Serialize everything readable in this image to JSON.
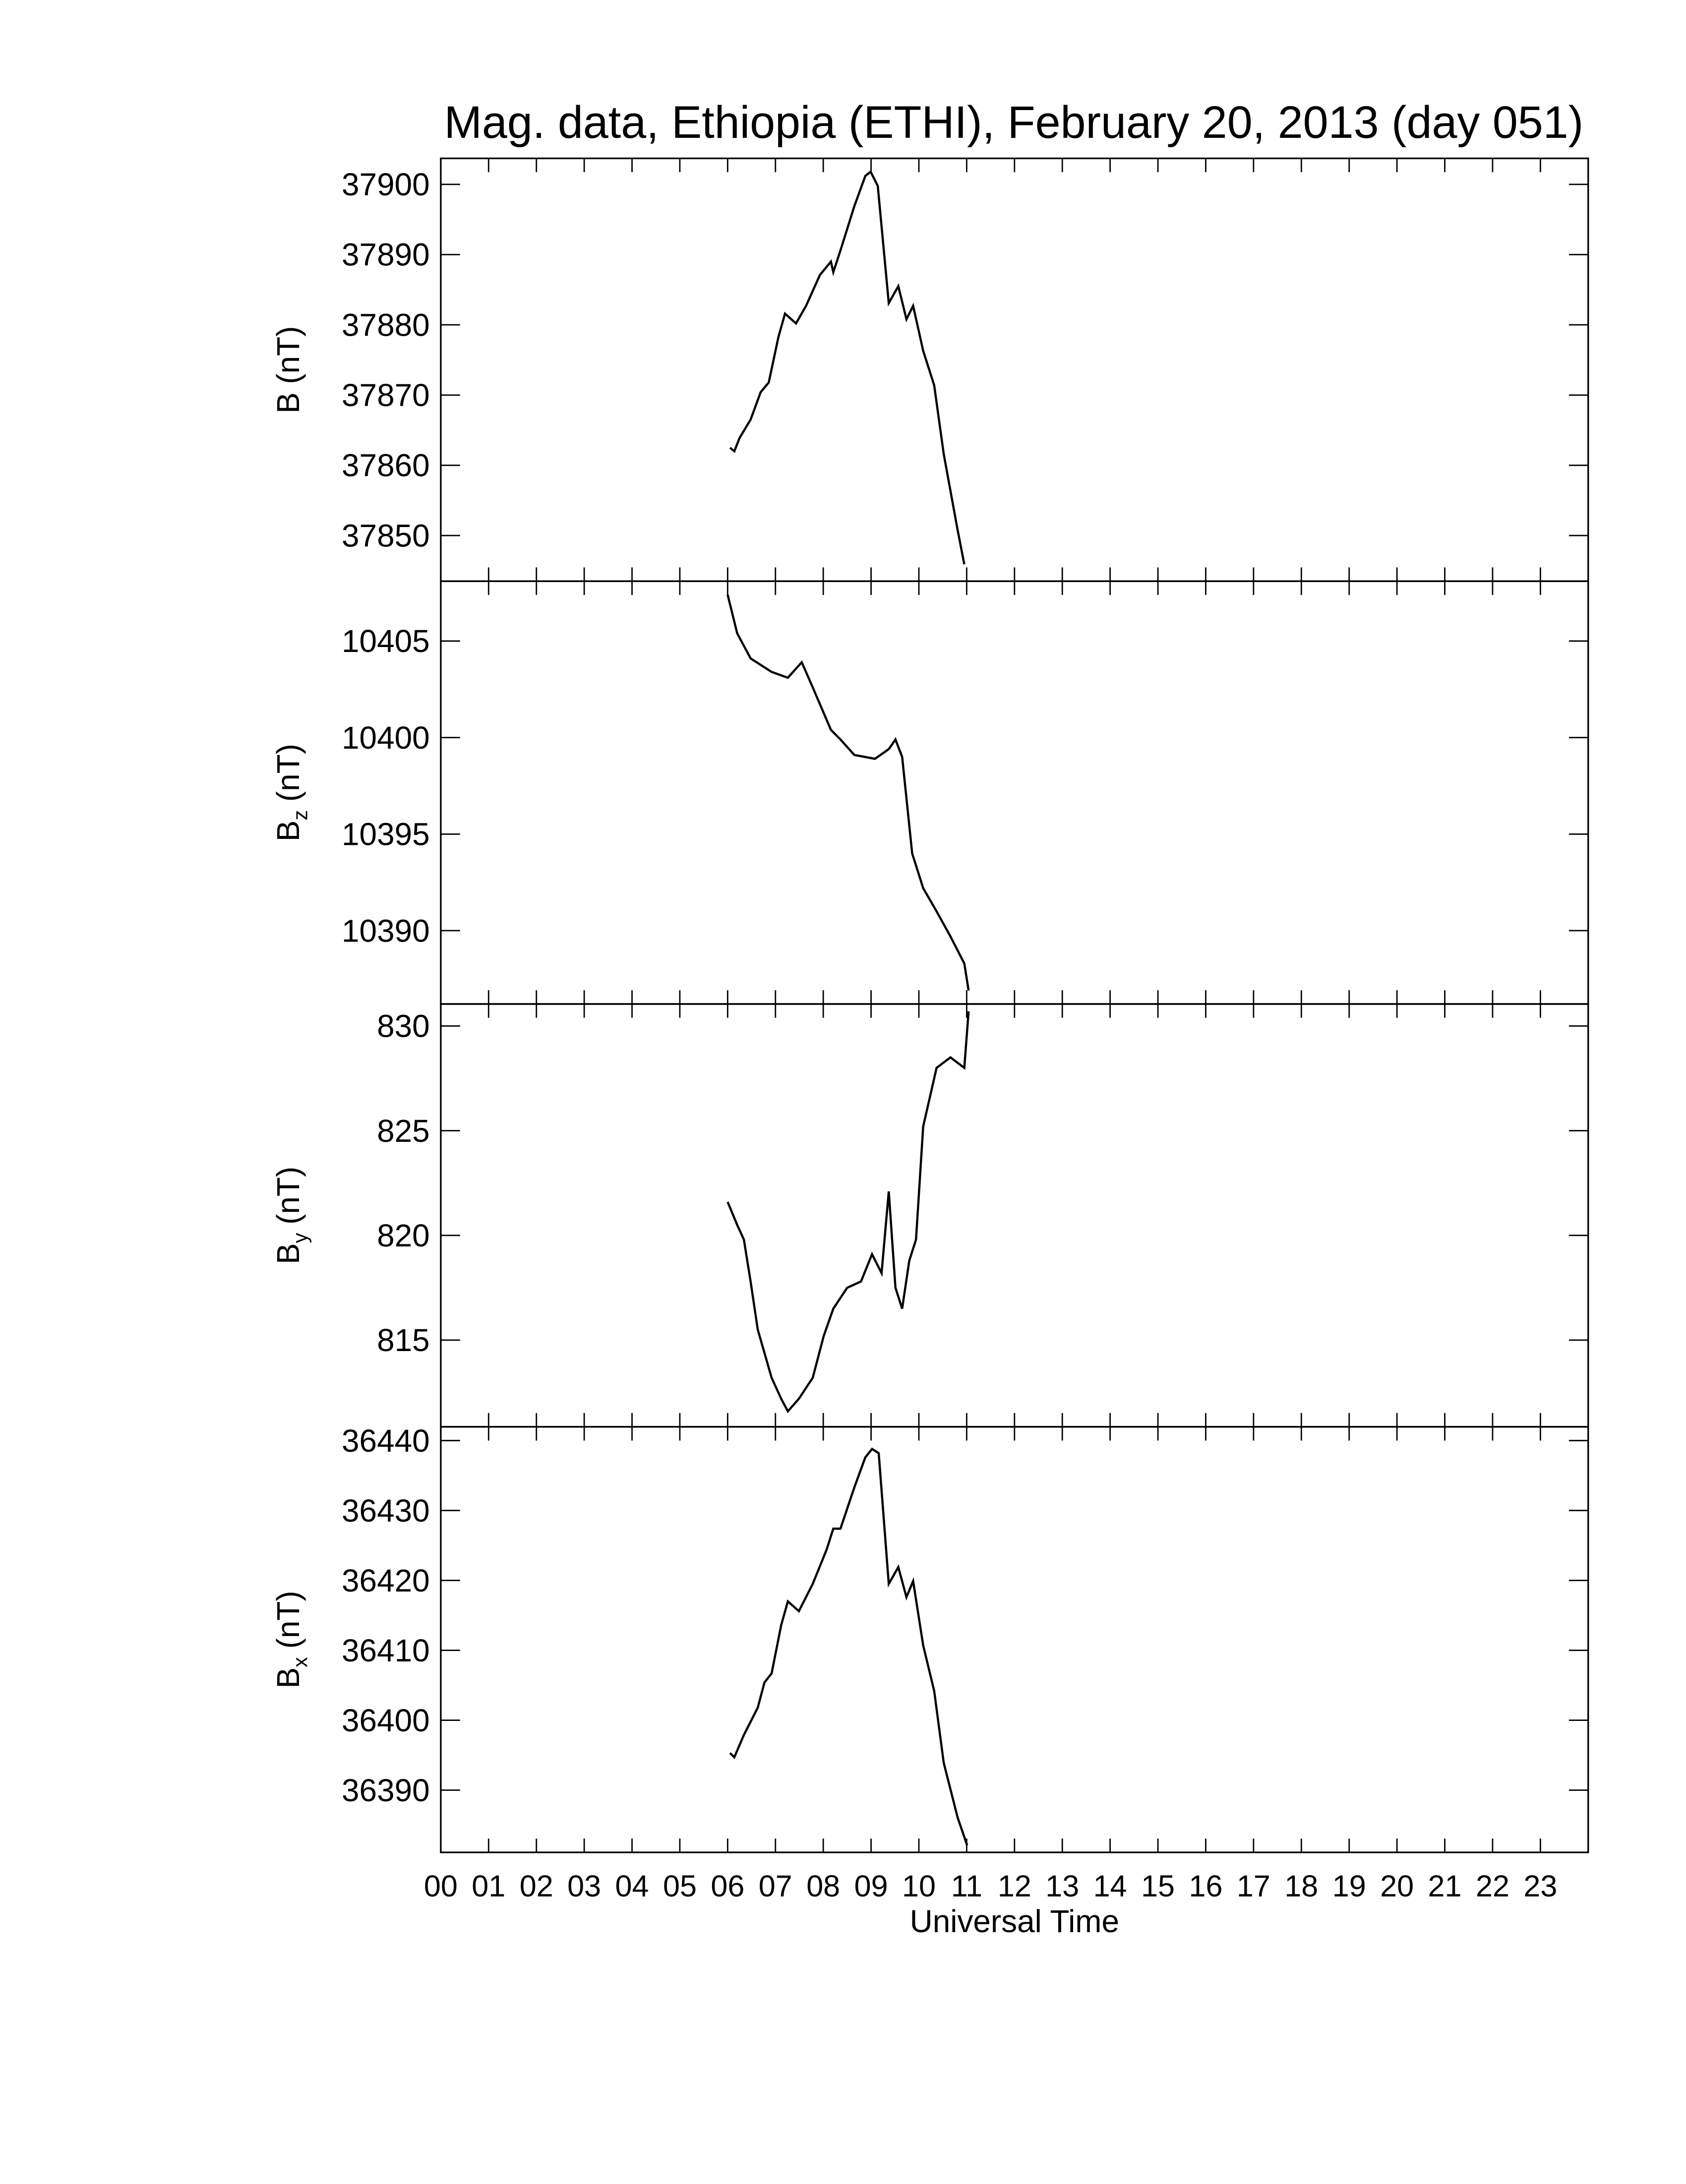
{
  "chart_data": [
    {
      "type": "line",
      "title": "Mag. data, Ethiopia (ETHI), February 20, 2013 (day 051)",
      "ylabel": "B",
      "ylabel_unit": "(nT)",
      "color": "#000000",
      "xlim": [
        0,
        24
      ],
      "xticks": [
        {
          "value": 0,
          "label": "00"
        },
        {
          "value": 1,
          "label": "01"
        },
        {
          "value": 2,
          "label": "02"
        },
        {
          "value": 3,
          "label": "03"
        },
        {
          "value": 4,
          "label": "04"
        },
        {
          "value": 5,
          "label": "05"
        },
        {
          "value": 6,
          "label": "06"
        },
        {
          "value": 7,
          "label": "07"
        },
        {
          "value": 8,
          "label": "08"
        },
        {
          "value": 9,
          "label": "09"
        },
        {
          "value": 10,
          "label": "10"
        },
        {
          "value": 11,
          "label": "11"
        },
        {
          "value": 12,
          "label": "12"
        },
        {
          "value": 13,
          "label": "13"
        },
        {
          "value": 14,
          "label": "14"
        },
        {
          "value": 15,
          "label": "15"
        },
        {
          "value": 16,
          "label": "16"
        },
        {
          "value": 17,
          "label": "17"
        },
        {
          "value": 18,
          "label": "18"
        },
        {
          "value": 19,
          "label": "19"
        },
        {
          "value": 20,
          "label": "20"
        },
        {
          "value": 21,
          "label": "21"
        },
        {
          "value": 22,
          "label": "22"
        },
        {
          "value": 23,
          "label": "23"
        }
      ],
      "ylim": [
        37843.5,
        37903.7
      ],
      "yticks": [
        37850,
        37860,
        37870,
        37880,
        37890,
        37900
      ],
      "x": [
        6.05,
        6.14,
        6.25,
        6.48,
        6.69,
        6.86,
        7.06,
        7.2,
        7.43,
        7.64,
        7.93,
        8.16,
        8.21,
        8.36,
        8.65,
        8.88,
        8.99,
        9.14,
        9.37,
        9.57,
        9.74,
        9.88,
        10.09,
        10.32,
        10.52,
        10.81,
        10.95
      ],
      "values": [
        37862.5,
        37862.0,
        37863.9,
        37866.5,
        37870.4,
        37871.8,
        37878.2,
        37881.6,
        37880.2,
        37882.7,
        37887.1,
        37889.0,
        37887.5,
        37890.6,
        37896.9,
        37901.2,
        37901.8,
        37899.8,
        37883.1,
        37885.5,
        37880.8,
        37882.7,
        37876.3,
        37871.4,
        37861.6,
        37850.8,
        37845.9
      ]
    },
    {
      "type": "line",
      "ylabel": "B",
      "ylabel_sub": "z",
      "ylabel_unit": "(nT)",
      "color": "#000000",
      "xlim": [
        0,
        24
      ],
      "xticks": [
        {
          "value": 0,
          "label": "00"
        },
        {
          "value": 1,
          "label": "01"
        },
        {
          "value": 2,
          "label": "02"
        },
        {
          "value": 3,
          "label": "03"
        },
        {
          "value": 4,
          "label": "04"
        },
        {
          "value": 5,
          "label": "05"
        },
        {
          "value": 6,
          "label": "06"
        },
        {
          "value": 7,
          "label": "07"
        },
        {
          "value": 8,
          "label": "08"
        },
        {
          "value": 9,
          "label": "09"
        },
        {
          "value": 10,
          "label": "10"
        },
        {
          "value": 11,
          "label": "11"
        },
        {
          "value": 12,
          "label": "12"
        },
        {
          "value": 13,
          "label": "13"
        },
        {
          "value": 14,
          "label": "14"
        },
        {
          "value": 15,
          "label": "15"
        },
        {
          "value": 16,
          "label": "16"
        },
        {
          "value": 17,
          "label": "17"
        },
        {
          "value": 18,
          "label": "18"
        },
        {
          "value": 19,
          "label": "19"
        },
        {
          "value": 20,
          "label": "20"
        },
        {
          "value": 21,
          "label": "21"
        },
        {
          "value": 22,
          "label": "22"
        },
        {
          "value": 23,
          "label": "23"
        }
      ],
      "ylim": [
        10386.2,
        10408.1
      ],
      "yticks": [
        10390,
        10395,
        10400,
        10405
      ],
      "x": [
        6.0,
        6.2,
        6.48,
        6.92,
        7.26,
        7.55,
        7.78,
        8.16,
        8.36,
        8.65,
        9.08,
        9.37,
        9.51,
        9.65,
        9.86,
        10.09,
        10.37,
        10.66,
        10.95,
        11.04
      ],
      "values": [
        10407.4,
        10405.4,
        10404.1,
        10403.4,
        10403.1,
        10403.9,
        10402.6,
        10400.4,
        10399.9,
        10399.1,
        10398.9,
        10399.4,
        10399.9,
        10399.0,
        10394.0,
        10392.2,
        10391.0,
        10389.7,
        10388.3,
        10386.9
      ]
    },
    {
      "type": "line",
      "ylabel": "B",
      "ylabel_sub": "y",
      "ylabel_unit": "(nT)",
      "color": "#000000",
      "xlim": [
        0,
        24
      ],
      "xticks": [
        {
          "value": 0,
          "label": "00"
        },
        {
          "value": 1,
          "label": "01"
        },
        {
          "value": 2,
          "label": "02"
        },
        {
          "value": 3,
          "label": "03"
        },
        {
          "value": 4,
          "label": "04"
        },
        {
          "value": 5,
          "label": "05"
        },
        {
          "value": 6,
          "label": "06"
        },
        {
          "value": 7,
          "label": "07"
        },
        {
          "value": 8,
          "label": "08"
        },
        {
          "value": 9,
          "label": "09"
        },
        {
          "value": 10,
          "label": "10"
        },
        {
          "value": 11,
          "label": "11"
        },
        {
          "value": 12,
          "label": "12"
        },
        {
          "value": 13,
          "label": "13"
        },
        {
          "value": 14,
          "label": "14"
        },
        {
          "value": 15,
          "label": "15"
        },
        {
          "value": 16,
          "label": "16"
        },
        {
          "value": 17,
          "label": "17"
        },
        {
          "value": 18,
          "label": "18"
        },
        {
          "value": 19,
          "label": "19"
        },
        {
          "value": 20,
          "label": "20"
        },
        {
          "value": 21,
          "label": "21"
        },
        {
          "value": 22,
          "label": "22"
        },
        {
          "value": 23,
          "label": "23"
        }
      ],
      "ylim": [
        810.86,
        831.05
      ],
      "yticks": [
        815,
        820,
        825,
        830
      ],
      "x": [
        6.0,
        6.2,
        6.34,
        6.48,
        6.63,
        6.92,
        7.12,
        7.26,
        7.49,
        7.78,
        8.01,
        8.21,
        8.5,
        8.79,
        9.02,
        9.22,
        9.37,
        9.51,
        9.65,
        9.8,
        9.94,
        10.09,
        10.37,
        10.66,
        10.95,
        11.04
      ],
      "values": [
        821.6,
        820.5,
        819.8,
        817.8,
        815.5,
        813.2,
        812.2,
        811.6,
        812.2,
        813.2,
        815.2,
        816.5,
        817.5,
        817.8,
        819.1,
        818.2,
        822.1,
        817.5,
        816.5,
        818.8,
        819.8,
        825.2,
        828.0,
        828.5,
        828.0,
        830.7
      ]
    },
    {
      "type": "line",
      "ylabel": "B",
      "ylabel_sub": "x",
      "ylabel_unit": "(nT)",
      "xlabel": "Universal Time",
      "color": "#000000",
      "xlim": [
        0,
        24
      ],
      "xticks": [
        {
          "value": 0,
          "label": "00"
        },
        {
          "value": 1,
          "label": "01"
        },
        {
          "value": 2,
          "label": "02"
        },
        {
          "value": 3,
          "label": "03"
        },
        {
          "value": 4,
          "label": "04"
        },
        {
          "value": 5,
          "label": "05"
        },
        {
          "value": 6,
          "label": "06"
        },
        {
          "value": 7,
          "label": "07"
        },
        {
          "value": 8,
          "label": "08"
        },
        {
          "value": 9,
          "label": "09"
        },
        {
          "value": 10,
          "label": "10"
        },
        {
          "value": 11,
          "label": "11"
        },
        {
          "value": 12,
          "label": "12"
        },
        {
          "value": 13,
          "label": "13"
        },
        {
          "value": 14,
          "label": "14"
        },
        {
          "value": 15,
          "label": "15"
        },
        {
          "value": 16,
          "label": "16"
        },
        {
          "value": 17,
          "label": "17"
        },
        {
          "value": 18,
          "label": "18"
        },
        {
          "value": 19,
          "label": "19"
        },
        {
          "value": 20,
          "label": "20"
        },
        {
          "value": 21,
          "label": "21"
        },
        {
          "value": 22,
          "label": "22"
        },
        {
          "value": 23,
          "label": "23"
        }
      ],
      "ylim": [
        36381.1,
        36441.97
      ],
      "yticks": [
        36390,
        36400,
        36410,
        36420,
        36430,
        36440
      ],
      "x": [
        6.05,
        6.14,
        6.34,
        6.63,
        6.77,
        6.92,
        7.12,
        7.26,
        7.49,
        7.78,
        8.07,
        8.21,
        8.36,
        8.65,
        8.88,
        9.02,
        9.16,
        9.37,
        9.57,
        9.74,
        9.88,
        10.09,
        10.32,
        10.52,
        10.81,
        11.01
      ],
      "values": [
        36395.3,
        36394.7,
        36397.9,
        36401.8,
        36405.4,
        36406.7,
        36413.6,
        36417.0,
        36415.6,
        36419.5,
        36424.4,
        36427.4,
        36427.4,
        36433.3,
        36437.6,
        36438.8,
        36438.2,
        36419.5,
        36421.9,
        36417.6,
        36419.9,
        36410.7,
        36404.2,
        36393.9,
        36386.1,
        36382.1
      ]
    }
  ]
}
